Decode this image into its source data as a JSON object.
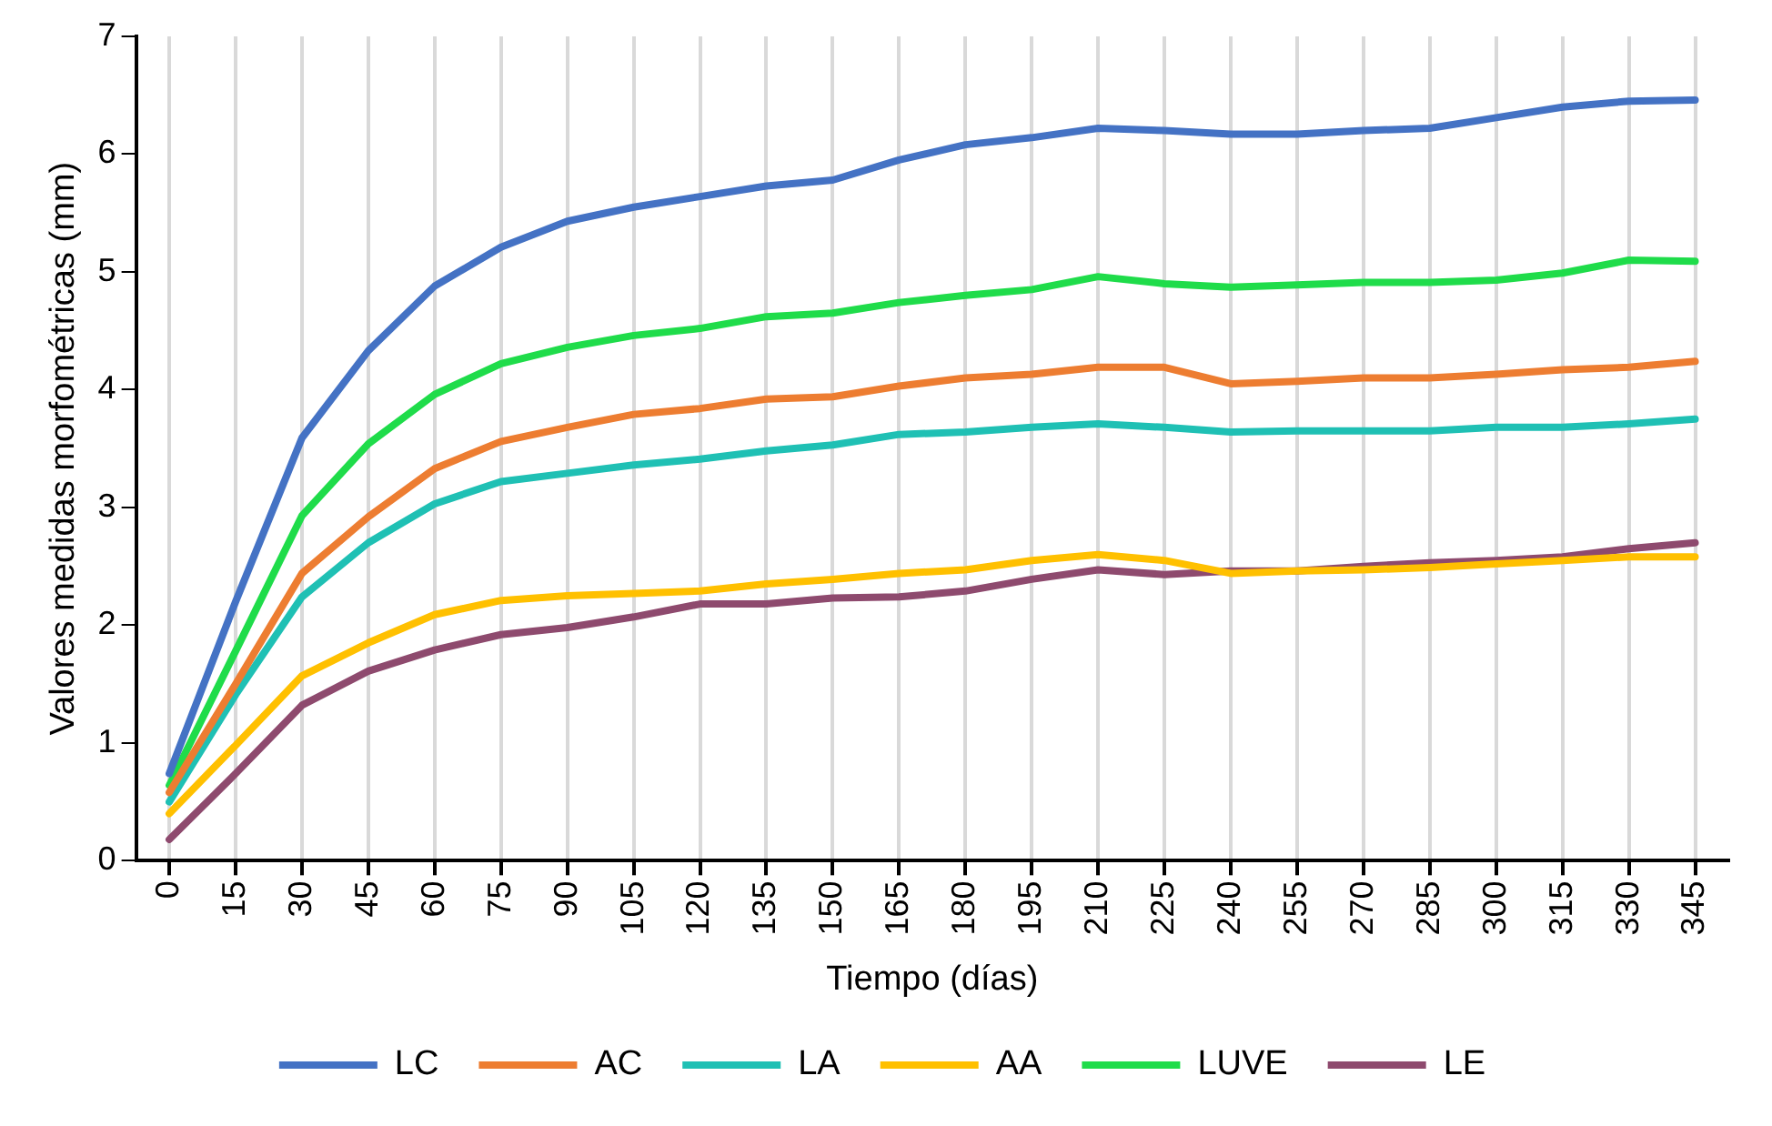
{
  "chart_data": {
    "type": "line",
    "xlabel": "Tiempo (días)",
    "ylabel": "Valores medidas morfométricas (mm)",
    "categories": [
      "0",
      "15",
      "30",
      "45",
      "60",
      "75",
      "90",
      "105",
      "120",
      "135",
      "150",
      "165",
      "180",
      "195",
      "210",
      "225",
      "240",
      "255",
      "270",
      "285",
      "300",
      "315",
      "330",
      "345"
    ],
    "ylim": [
      0,
      7
    ],
    "yticks": [
      0,
      1,
      2,
      3,
      4,
      5,
      6,
      7
    ],
    "grid": "x",
    "legend": "bottom",
    "marker": "none",
    "line_style": "solid",
    "series": [
      {
        "name": "LC",
        "color": "#4472c4",
        "values": [
          0.74,
          2.2,
          3.59,
          4.33,
          4.88,
          5.21,
          5.43,
          5.55,
          5.64,
          5.73,
          5.78,
          5.95,
          6.08,
          6.14,
          6.22,
          6.2,
          6.17,
          6.17,
          6.2,
          6.22,
          6.31,
          6.4,
          6.45,
          6.46
        ]
      },
      {
        "name": "AC",
        "color": "#ed7d31",
        "values": [
          0.58,
          1.5,
          2.44,
          2.92,
          3.33,
          3.56,
          3.68,
          3.79,
          3.84,
          3.92,
          3.94,
          4.03,
          4.1,
          4.13,
          4.19,
          4.19,
          4.05,
          4.07,
          4.1,
          4.1,
          4.13,
          4.17,
          4.19,
          4.24
        ]
      },
      {
        "name": "LA",
        "color": "#1fc0b4",
        "values": [
          0.5,
          1.41,
          2.24,
          2.7,
          3.03,
          3.22,
          3.29,
          3.36,
          3.41,
          3.48,
          3.53,
          3.62,
          3.64,
          3.68,
          3.71,
          3.68,
          3.64,
          3.65,
          3.65,
          3.65,
          3.68,
          3.68,
          3.71,
          3.75
        ]
      },
      {
        "name": "AA",
        "color": "#ffc000",
        "values": [
          0.4,
          0.98,
          1.57,
          1.85,
          2.09,
          2.21,
          2.25,
          2.27,
          2.29,
          2.35,
          2.39,
          2.44,
          2.47,
          2.55,
          2.6,
          2.55,
          2.44,
          2.46,
          2.47,
          2.49,
          2.52,
          2.55,
          2.58,
          2.58
        ]
      },
      {
        "name": "LUVE",
        "color": "#1fdc4a",
        "values": [
          0.64,
          1.78,
          2.93,
          3.54,
          3.96,
          4.22,
          4.36,
          4.46,
          4.52,
          4.62,
          4.65,
          4.74,
          4.8,
          4.85,
          4.96,
          4.9,
          4.87,
          4.89,
          4.91,
          4.91,
          4.93,
          4.99,
          5.1,
          5.09
        ]
      },
      {
        "name": "LE",
        "color": "#8e4a6e",
        "values": [
          0.18,
          0.74,
          1.32,
          1.61,
          1.79,
          1.92,
          1.98,
          2.07,
          2.18,
          2.18,
          2.23,
          2.24,
          2.29,
          2.39,
          2.47,
          2.43,
          2.46,
          2.46,
          2.5,
          2.53,
          2.55,
          2.58,
          2.65,
          2.7
        ]
      }
    ]
  }
}
